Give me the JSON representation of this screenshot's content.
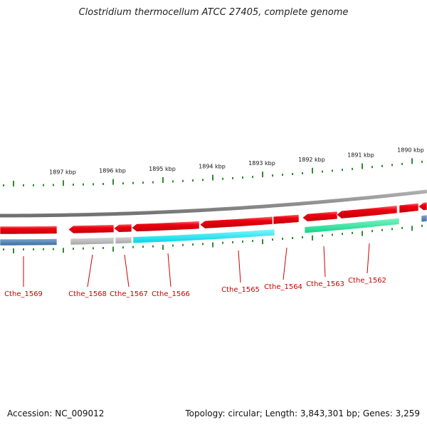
{
  "title": "Clostridium thermocellum ATCC 27405, complete genome",
  "footer": {
    "accession": "Accession: NC_009012",
    "summary": "Topology: circular; Length: 3,843,301 bp; Genes: 3,259"
  },
  "kbp_labels": [
    "1897 kbp",
    "1896 kbp",
    "1895 kbp",
    "1894 kbp",
    "1893 kbp",
    "1892 kbp",
    "1891 kbp",
    "1890 kbp"
  ],
  "gene_labels": [
    "Cthe_1569",
    "Cthe_1568",
    "Cthe_1567",
    "Cthe_1566",
    "Cthe_1565",
    "Cthe_1564",
    "Cthe_1563",
    "Cthe_1562"
  ],
  "colors": {
    "backbone": "#8a8a8a",
    "gene_red": "#e8000a",
    "tick_green": "#2e8b2e",
    "label_red": "#cc0000",
    "cog_blue": "#4a7fb0",
    "cog_grey": "#b8b8b8",
    "cog_cyan": "#00e6f0",
    "cog_green": "#1fe89a"
  }
}
